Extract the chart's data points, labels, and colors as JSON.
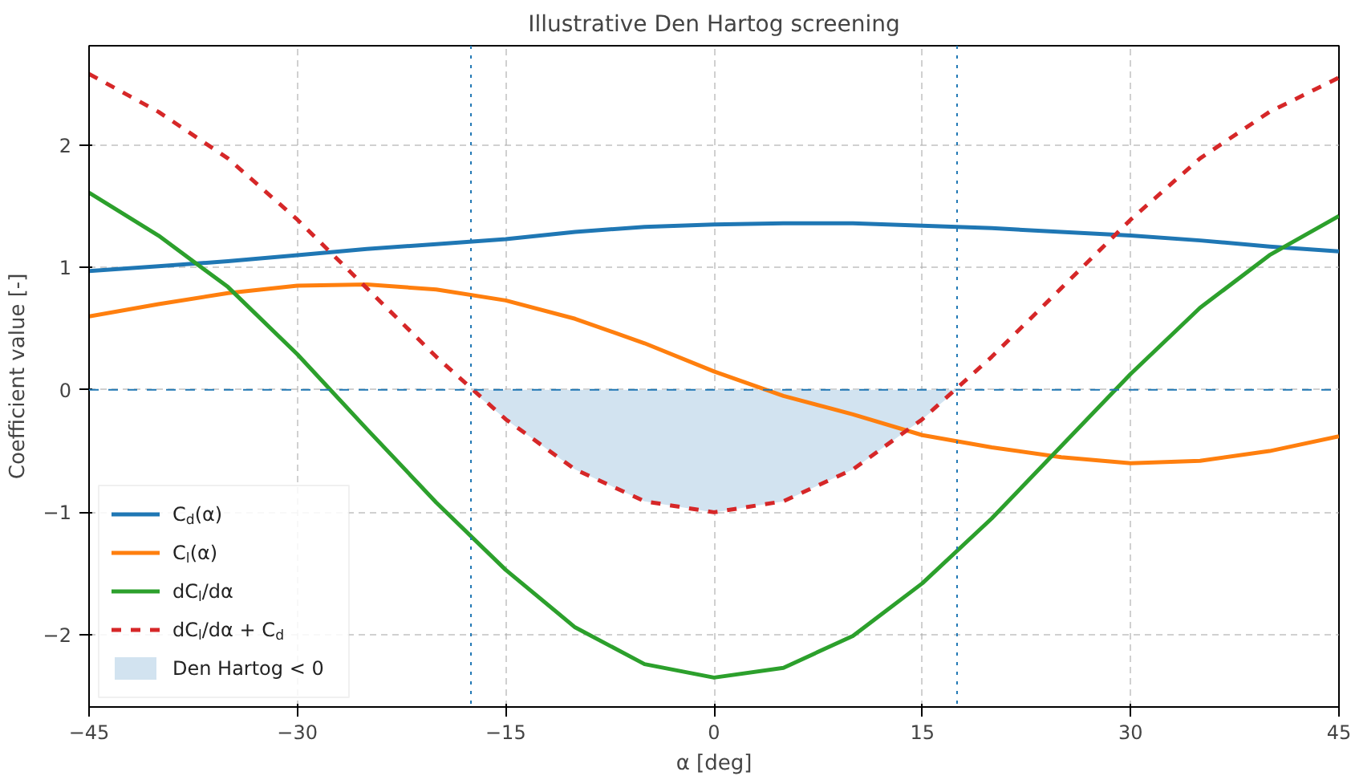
{
  "chart_data": {
    "type": "line",
    "title": "Illustrative Den Hartog screening",
    "xlabel": "α [deg]",
    "ylabel": "Coefficient value [-]",
    "x": [
      -45,
      -40,
      -35,
      -30,
      -25,
      -20,
      -15,
      -10,
      -5,
      0,
      5,
      10,
      15,
      20,
      25,
      30,
      35,
      40,
      45
    ],
    "series": [
      {
        "name": "C$_{d}$(α)",
        "color": "#1f77b4",
        "values": [
          0.97,
          1.01,
          1.05,
          1.1,
          1.15,
          1.19,
          1.23,
          1.29,
          1.33,
          1.35,
          1.36,
          1.36,
          1.34,
          1.32,
          1.29,
          1.26,
          1.22,
          1.17,
          1.13
        ]
      },
      {
        "name": "C$_{l}$(α)",
        "color": "#ff7f0e",
        "values": [
          0.6,
          0.7,
          0.79,
          0.85,
          0.86,
          0.82,
          0.73,
          0.58,
          0.38,
          0.15,
          -0.05,
          -0.2,
          -0.37,
          -0.47,
          -0.55,
          -0.6,
          -0.58,
          -0.5,
          -0.38
        ]
      },
      {
        "name": "dC$_{l}$/dα",
        "color": "#2ca02c",
        "values": [
          1.61,
          1.26,
          0.84,
          0.29,
          -0.32,
          -0.92,
          -1.47,
          -1.94,
          -2.24,
          -2.35,
          -2.27,
          -2.01,
          -1.58,
          -1.05,
          -0.46,
          0.13,
          0.67,
          1.1,
          1.42
        ]
      },
      {
        "name": "dC$_{l}$/dα + C$_{d}$",
        "color": "#d62728",
        "line_style": "dashed",
        "values": [
          2.58,
          2.27,
          1.89,
          1.39,
          0.83,
          0.27,
          -0.24,
          -0.65,
          -0.91,
          -1.0,
          -0.91,
          -0.65,
          -0.24,
          0.27,
          0.83,
          1.39,
          1.89,
          2.27,
          2.55
        ]
      },
      {
        "name": "Den Hartog < 0",
        "type": "area",
        "color": "#d2e3f0",
        "x": [
          -17.5,
          -15,
          -10,
          -5,
          0,
          5,
          10,
          15,
          17.5
        ],
        "values": [
          0,
          -0.24,
          -0.65,
          -0.91,
          -1.0,
          -0.91,
          -0.65,
          -0.24,
          0
        ]
      }
    ],
    "ref_lines": [
      {
        "axis": "y",
        "value": 0,
        "color": "#1f77b4",
        "line_style": "dashed"
      },
      {
        "axis": "x",
        "value": -17.5,
        "color": "#1f77b4",
        "line_style": "dotted"
      },
      {
        "axis": "x",
        "value": 17.5,
        "color": "#1f77b4",
        "line_style": "dotted"
      }
    ],
    "xlim": [
      -45,
      45
    ],
    "ylim": [
      -2.59,
      2.81
    ],
    "xticks": [
      {
        "value": -45,
        "label": "−45"
      },
      {
        "value": -30,
        "label": "−30"
      },
      {
        "value": -15,
        "label": "−15"
      },
      0,
      15,
      30,
      45
    ],
    "yticks": [
      {
        "value": -2,
        "label": "−2"
      },
      {
        "value": -1,
        "label": "−1"
      },
      0,
      1,
      2
    ],
    "grid": true,
    "legend": "bottom left",
    "line_style": "solid"
  }
}
